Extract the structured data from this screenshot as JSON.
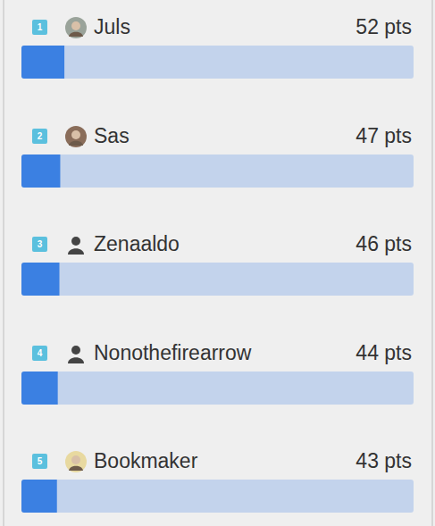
{
  "chart_data": {
    "type": "bar",
    "orientation": "horizontal",
    "ranks": [
      1,
      2,
      3,
      4,
      5
    ],
    "categories": [
      "Juls",
      "Sas",
      "Zenaaldo",
      "Nonothefirearrow",
      "Bookmaker"
    ],
    "values": [
      52,
      47,
      46,
      44,
      43
    ],
    "value_labels": [
      "52 pts",
      "47 pts",
      "46 pts",
      "44 pts",
      "43 pts"
    ],
    "data_labels": true,
    "xlim": [
      0,
      475
    ],
    "tick_labels": false,
    "grid": false,
    "color": "#3b80e2"
  }
}
